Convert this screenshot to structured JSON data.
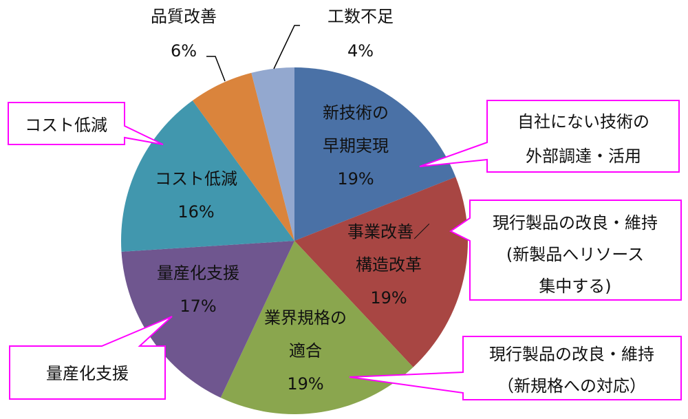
{
  "chart_data": {
    "type": "pie",
    "start": "top",
    "direction": "clockwise",
    "slices": [
      {
        "label": [
          "新技術の",
          "早期実現"
        ],
        "value": 19,
        "pct": "19%",
        "color": "#4a71a6"
      },
      {
        "label": [
          "事業改善／",
          "構造改革"
        ],
        "value": 19,
        "pct": "19%",
        "color": "#a84643"
      },
      {
        "label": [
          "業界規格の",
          "適合"
        ],
        "value": 19,
        "pct": "19%",
        "color": "#8aa64e"
      },
      {
        "label": [
          "量産化支援"
        ],
        "value": 17,
        "pct": "17%",
        "color": "#6f568f"
      },
      {
        "label": [
          "コスト低減"
        ],
        "value": 16,
        "pct": "16%",
        "color": "#4197ae"
      },
      {
        "label": [
          "品質改善"
        ],
        "value": 6,
        "pct": "6%",
        "color": "#da843c"
      },
      {
        "label": [
          "工数不足"
        ],
        "value": 4,
        "pct": "4%",
        "color": "#93a8cf"
      }
    ],
    "callout_color": "#ff00ff",
    "callouts": [
      {
        "lines": [
          "自社にない技術の",
          "外部調達・活用"
        ]
      },
      {
        "lines": [
          "現行製品の改良・維持",
          "(新製品へリソース",
          "集中する)"
        ]
      },
      {
        "lines": [
          "現行製品の改良・維持",
          "（新規格への対応）"
        ]
      },
      {
        "lines": [
          "コスト低減"
        ]
      },
      {
        "lines": [
          "量産化支援"
        ]
      }
    ]
  }
}
